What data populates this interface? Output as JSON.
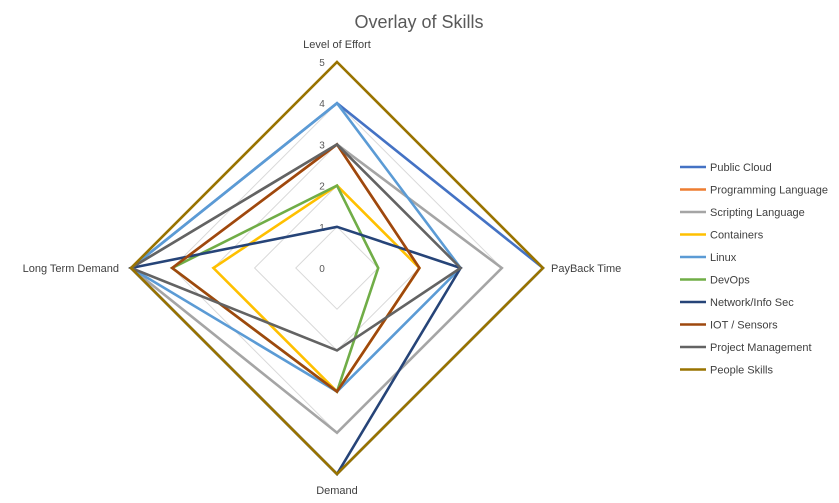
{
  "chart_data": {
    "type": "radar",
    "title": "Overlay of Skills",
    "axes": [
      "Level of Effort",
      "PayBack Time",
      "Demand",
      "Long Term Demand"
    ],
    "rlim": [
      0,
      5
    ],
    "ticks": [
      0,
      1,
      2,
      3,
      4,
      5
    ],
    "grid": true,
    "legend_position": "right",
    "series": [
      {
        "name": "Public Cloud",
        "color": "#4472C4",
        "values": [
          4,
          5,
          5,
          5
        ]
      },
      {
        "name": "Programming Language",
        "color": "#ED7D31",
        "values": [
          3,
          2,
          3,
          4
        ]
      },
      {
        "name": "Scripting Language",
        "color": "#A5A5A5",
        "values": [
          3,
          4,
          4,
          5
        ]
      },
      {
        "name": "Containers",
        "color": "#FFC000",
        "values": [
          2,
          2,
          3,
          3
        ]
      },
      {
        "name": "Linux",
        "color": "#5B9BD5",
        "values": [
          4,
          3,
          3,
          5
        ]
      },
      {
        "name": "DevOps",
        "color": "#70AD47",
        "values": [
          2,
          1,
          3,
          4
        ]
      },
      {
        "name": "Network/Info Sec",
        "color": "#264478",
        "values": [
          1,
          3,
          5,
          5
        ]
      },
      {
        "name": "IOT / Sensors",
        "color": "#9E480E",
        "values": [
          3,
          2,
          3,
          4
        ]
      },
      {
        "name": "Project Management",
        "color": "#636363",
        "values": [
          3,
          3,
          2,
          5
        ]
      },
      {
        "name": "People Skills",
        "color": "#997300",
        "values": [
          5,
          5,
          5,
          5
        ]
      }
    ]
  }
}
